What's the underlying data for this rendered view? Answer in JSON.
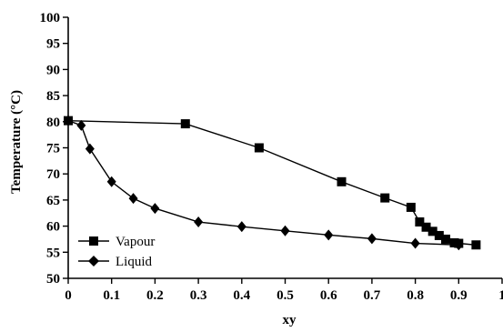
{
  "chart_data": {
    "type": "line",
    "title": "",
    "xlabel": "xy",
    "ylabel": "Temperature (°C)",
    "xlim": [
      0,
      1.0
    ],
    "ylim": [
      50,
      100
    ],
    "x_ticks": [
      0,
      0.1,
      0.2,
      0.3,
      0.4,
      0.5,
      0.6,
      0.7,
      0.8,
      0.9,
      1.0
    ],
    "x_tick_labels": [
      "0",
      "0.1",
      "0.2",
      "0.3",
      "0.4",
      "0.5",
      "0.6",
      "0.7",
      "0.8",
      "0.9",
      "1"
    ],
    "y_ticks": [
      50,
      55,
      60,
      65,
      70,
      75,
      80,
      85,
      90,
      95,
      100
    ],
    "y_tick_labels": [
      "50",
      "55",
      "60",
      "65",
      "70",
      "75",
      "80",
      "85",
      "90",
      "95",
      "100"
    ],
    "grid": false,
    "legend_position": "bottom-left",
    "series": [
      {
        "name": "Vapour",
        "marker": "square",
        "color": "#000000",
        "x": [
          0.0,
          0.27,
          0.44,
          0.63,
          0.73,
          0.79,
          0.81,
          0.825,
          0.84,
          0.855,
          0.87,
          0.89,
          0.9,
          0.94
        ],
        "y": [
          80.2,
          79.6,
          75.0,
          68.5,
          65.4,
          63.6,
          60.8,
          59.8,
          59.0,
          58.2,
          57.5,
          56.8,
          56.7,
          56.4
        ]
      },
      {
        "name": "Liquid",
        "marker": "diamond",
        "color": "#000000",
        "x": [
          0.0,
          0.03,
          0.05,
          0.1,
          0.15,
          0.2,
          0.3,
          0.4,
          0.5,
          0.6,
          0.7,
          0.8,
          0.9
        ],
        "y": [
          80.2,
          79.3,
          74.8,
          68.5,
          65.3,
          63.4,
          60.8,
          59.9,
          59.1,
          58.3,
          57.6,
          56.7,
          56.4
        ]
      }
    ]
  }
}
